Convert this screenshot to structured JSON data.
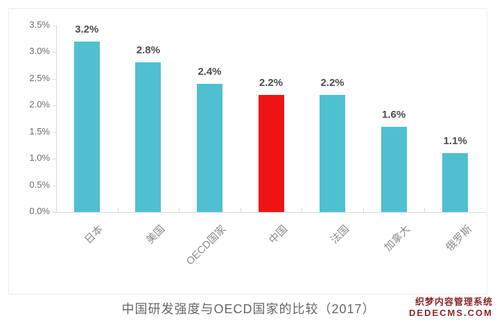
{
  "chart_data": {
    "type": "bar",
    "title": "中国研发强度与OECD国家的比较（2017）",
    "categories": [
      "日本",
      "美国",
      "OECD国家",
      "中国",
      "法国",
      "加拿大",
      "俄罗斯"
    ],
    "values": [
      3.2,
      2.8,
      2.4,
      2.2,
      2.2,
      1.6,
      1.1
    ],
    "bar_labels": [
      "3.2%",
      "2.8%",
      "2.4%",
      "2.2%",
      "2.2%",
      "1.6%",
      "1.1%"
    ],
    "highlight_index": 3,
    "highlight_category": "中国",
    "colors": {
      "bar": "#4FC0CF",
      "highlight": "#EE1414"
    },
    "yticks": [
      "3.5%",
      "3.0%",
      "2.5%",
      "2.0%",
      "1.5%",
      "1.0%",
      "0.5%",
      "0.0%"
    ],
    "ylim": [
      0,
      3.5
    ],
    "xlabel": "",
    "ylabel": "",
    "grid": false,
    "legend": "none"
  },
  "watermark": {
    "line1": "织梦内容管理系统",
    "line2": "DEDECMS.COM",
    "color": "#8B2626"
  }
}
